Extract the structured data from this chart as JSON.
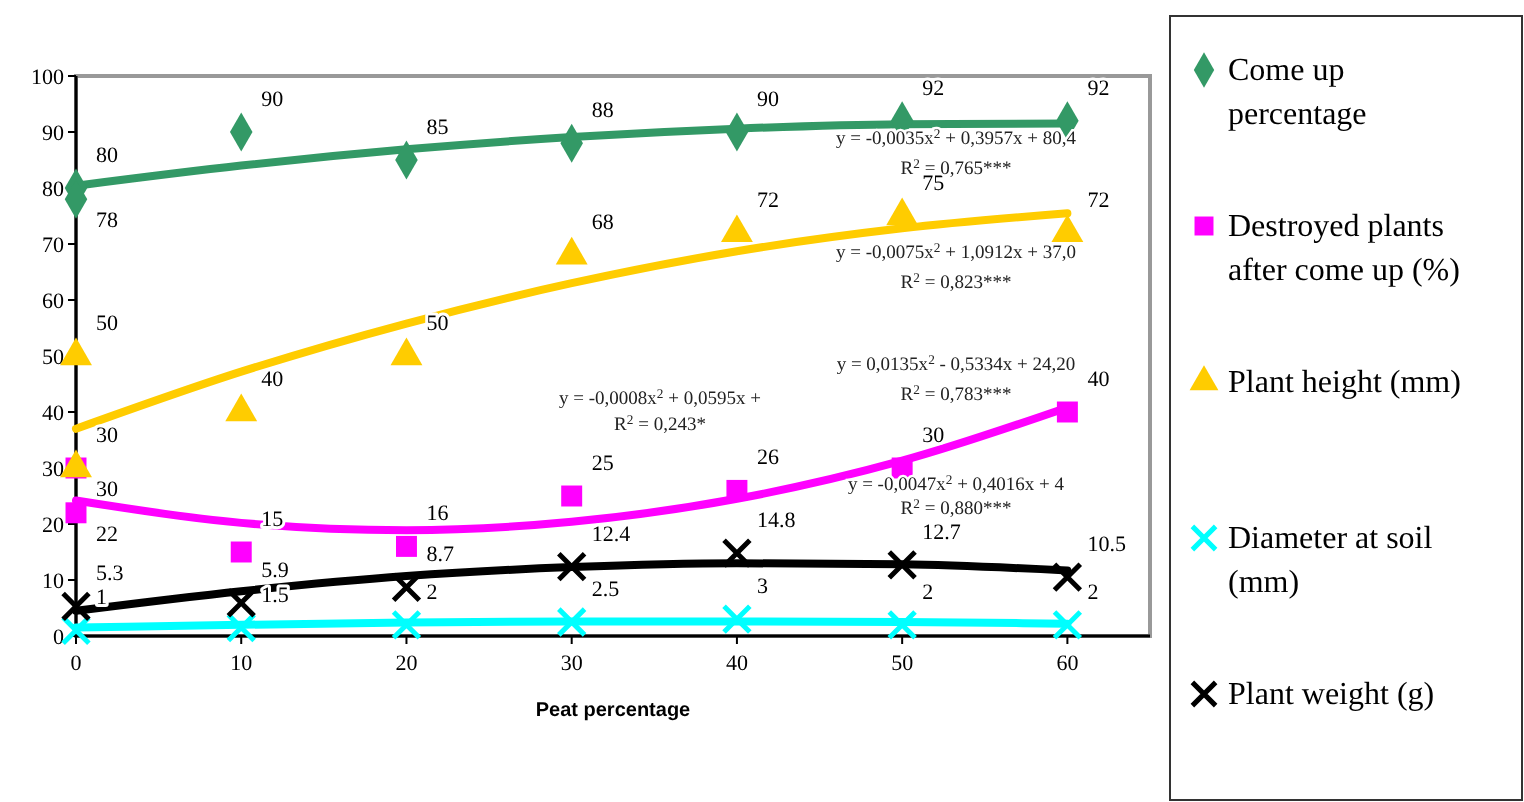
{
  "chart_data": {
    "type": "scatter",
    "xlabel": "Peat percentage",
    "xlim": [
      0,
      65
    ],
    "xticks": [
      0,
      10,
      20,
      30,
      40,
      50,
      60
    ],
    "ylim": [
      0,
      100
    ],
    "yticks": [
      0,
      10,
      20,
      30,
      40,
      50,
      60,
      70,
      80,
      90,
      100
    ],
    "grid": false,
    "legend": "right",
    "series": [
      {
        "name": "Come up percentage",
        "marker": "diamond",
        "color": "#339966",
        "x": [
          0,
          0,
          10,
          20,
          30,
          40,
          50,
          60
        ],
        "values": [
          80,
          78,
          90,
          85,
          88,
          90,
          92,
          92
        ],
        "value_labels": [
          "80",
          "78",
          "90",
          "85",
          "88",
          "90",
          "92",
          "92"
        ]
      },
      {
        "name": "Destroyed plants after come up (%)",
        "marker": "square",
        "color": "#ff00ff",
        "x": [
          0,
          0,
          10,
          20,
          30,
          40,
          50,
          60
        ],
        "values": [
          30,
          22,
          15,
          16,
          25,
          26,
          30,
          40
        ],
        "value_labels": [
          "30",
          "22",
          "15",
          "16",
          "25",
          "26",
          "30",
          "40"
        ]
      },
      {
        "name": "Plant height (mm)",
        "marker": "triangle",
        "color": "#ffcc00",
        "x": [
          0,
          0,
          10,
          20,
          30,
          40,
          50,
          60
        ],
        "values": [
          50,
          30,
          40,
          50,
          68,
          72,
          75,
          72
        ],
        "value_labels": [
          "50",
          "30",
          "40",
          "50",
          "68",
          "72",
          "75",
          "72"
        ]
      },
      {
        "name": "Diameter at soil (mm)",
        "marker": "cross",
        "color": "#00ffff",
        "x": [
          0,
          10,
          20,
          30,
          40,
          50,
          60
        ],
        "values": [
          1,
          1.5,
          2,
          2.5,
          3,
          2,
          2
        ],
        "value_labels": [
          "1",
          "1.5",
          "2",
          "2.5",
          "3",
          "2",
          "2"
        ]
      },
      {
        "name": "Plant weight (g)",
        "marker": "cross",
        "color": "#000000",
        "x": [
          0,
          10,
          20,
          30,
          40,
          50,
          60
        ],
        "values": [
          5.3,
          5.9,
          8.7,
          12.4,
          14.8,
          12.7,
          10.5
        ],
        "value_labels": [
          "5.3",
          "5.9",
          "8.7",
          "12.4",
          "14.8",
          "12.7",
          "10.5"
        ]
      },
      {
        "type": "line",
        "marker": "none",
        "color": "#339966",
        "x": [
          0,
          10,
          20,
          30,
          40,
          50,
          60
        ],
        "values": [
          80.4,
          84,
          86.9,
          89.1,
          90.6,
          91.4,
          91.5
        ]
      },
      {
        "type": "line",
        "marker": "none",
        "color": "#ff00ff",
        "x": [
          0,
          10,
          20,
          30,
          40,
          50,
          60
        ],
        "values": [
          24.2,
          20.2,
          18.9,
          20.4,
          24.5,
          31.3,
          40.8
        ]
      },
      {
        "type": "line",
        "marker": "none",
        "color": "#ffcc00",
        "x": [
          0,
          10,
          20,
          30,
          40,
          50,
          60
        ],
        "values": [
          37,
          47.2,
          55.8,
          63,
          68.7,
          72.8,
          75.5
        ]
      },
      {
        "type": "line",
        "marker": "none",
        "color": "#00ffff",
        "x": [
          0,
          10,
          20,
          30,
          40,
          50,
          60
        ],
        "values": [
          1.5,
          2,
          2.4,
          2.6,
          2.6,
          2.5,
          2.2
        ]
      },
      {
        "type": "line",
        "marker": "none",
        "color": "#000000",
        "x": [
          0,
          10,
          20,
          30,
          40,
          50,
          60
        ],
        "values": [
          4.5,
          8,
          10.7,
          12.3,
          13,
          12.8,
          11.7
        ]
      }
    ],
    "annotations": [
      "y = -0,0035x$^{2}$ + 0,3957x + 80,4",
      "R$^{2}$ = 0,765***",
      "y = -0,0075x$^{2}$ + 1,0912x + 37,0",
      "R$^{2}$ = 0,823***",
      "y = 0,0135x$^{2}$ - 0,5334x + 24,20",
      "R$^{2}$ = 0,783***",
      "y = -0,0047x$^{2}$ + 0,4016x + 4",
      "R$^{2}$ = 0,880***",
      "y = -0,0008x$^{2}$ + 0,0595x +",
      "R$^{2}$ = 0,243*"
    ]
  }
}
